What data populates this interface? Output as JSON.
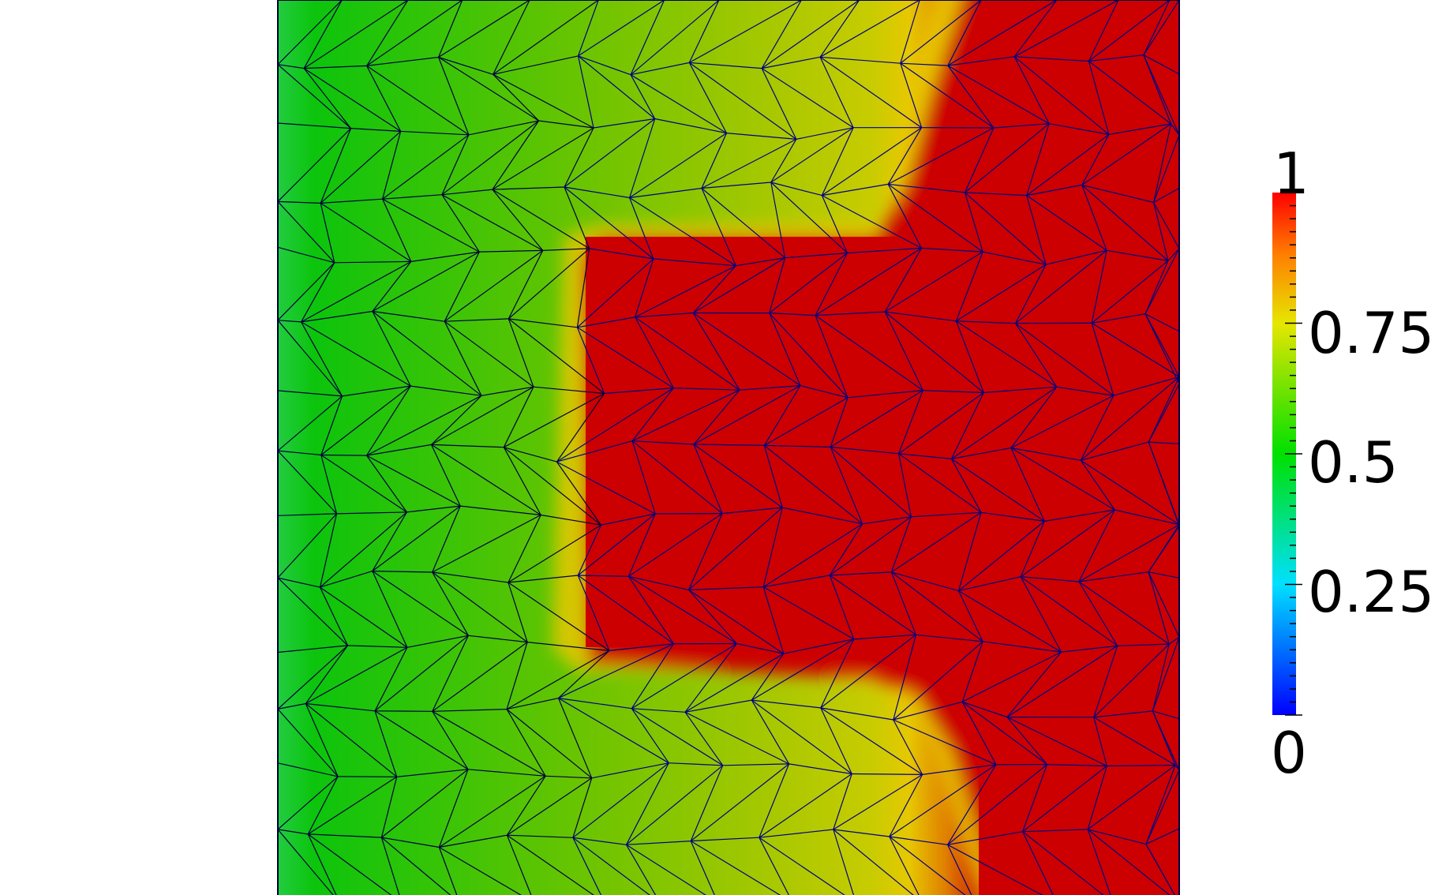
{
  "scalar_bar": {
    "labels": {
      "max": "1",
      "p75": "0.75",
      "p50": "0.5",
      "p25": "0.25",
      "min": "0"
    },
    "range": [
      0,
      1
    ],
    "colormap": [
      "#0000ff",
      "#00e0ff",
      "#00e000",
      "#e6e600",
      "#ff8000",
      "#ff0000"
    ]
  },
  "field": {
    "colors": {
      "green": "#10c010",
      "yellow_green": "#a8c800",
      "yellow": "#e0d000",
      "red": "#cc0000",
      "mesh_line": "#00003a",
      "mesh_line_hot": "#000080"
    }
  }
}
